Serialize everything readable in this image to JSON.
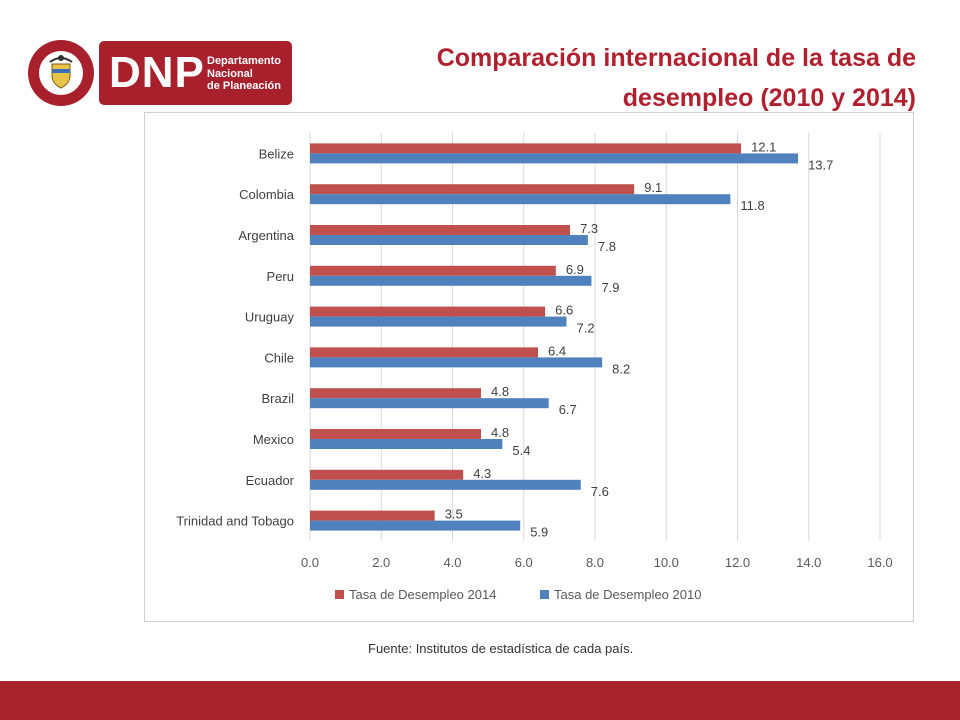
{
  "header": {
    "title_line1": "Comparación internacional de la tasa de",
    "title_line2": "desempleo (2010 y 2014)"
  },
  "logo": {
    "brand": "DNP",
    "sub_line1": "Departamento",
    "sub_line2": "Nacional",
    "sub_line3": "de Planeación",
    "seal_icon": "coat-of-arms-icon"
  },
  "colors": {
    "accent": "#b0202e",
    "series_2014": "#c0504d",
    "series_2010": "#4f81bd",
    "footer": "#a8232d"
  },
  "chart_data": {
    "type": "bar",
    "orientation": "horizontal",
    "categories": [
      "Belize",
      "Colombia",
      "Argentina",
      "Peru",
      "Uruguay",
      "Chile",
      "Brazil",
      "Mexico",
      "Ecuador",
      "Trinidad and Tobago"
    ],
    "series": [
      {
        "name": "Tasa de Desempleo 2014",
        "values": [
          12.1,
          9.1,
          7.3,
          6.9,
          6.6,
          6.4,
          4.8,
          4.8,
          4.3,
          3.5
        ]
      },
      {
        "name": "Tasa de Desempleo 2010",
        "values": [
          13.7,
          11.8,
          7.8,
          7.9,
          7.2,
          8.2,
          6.7,
          5.4,
          7.6,
          5.9
        ]
      }
    ],
    "xlim": [
      0,
      16
    ],
    "xticks": [
      "0.0",
      "2.0",
      "4.0",
      "6.0",
      "8.0",
      "10.0",
      "12.0",
      "14.0",
      "16.0"
    ],
    "grid": true,
    "legend_position": "bottom"
  },
  "footer": {
    "source": "Fuente: Institutos de estadística de cada país."
  }
}
